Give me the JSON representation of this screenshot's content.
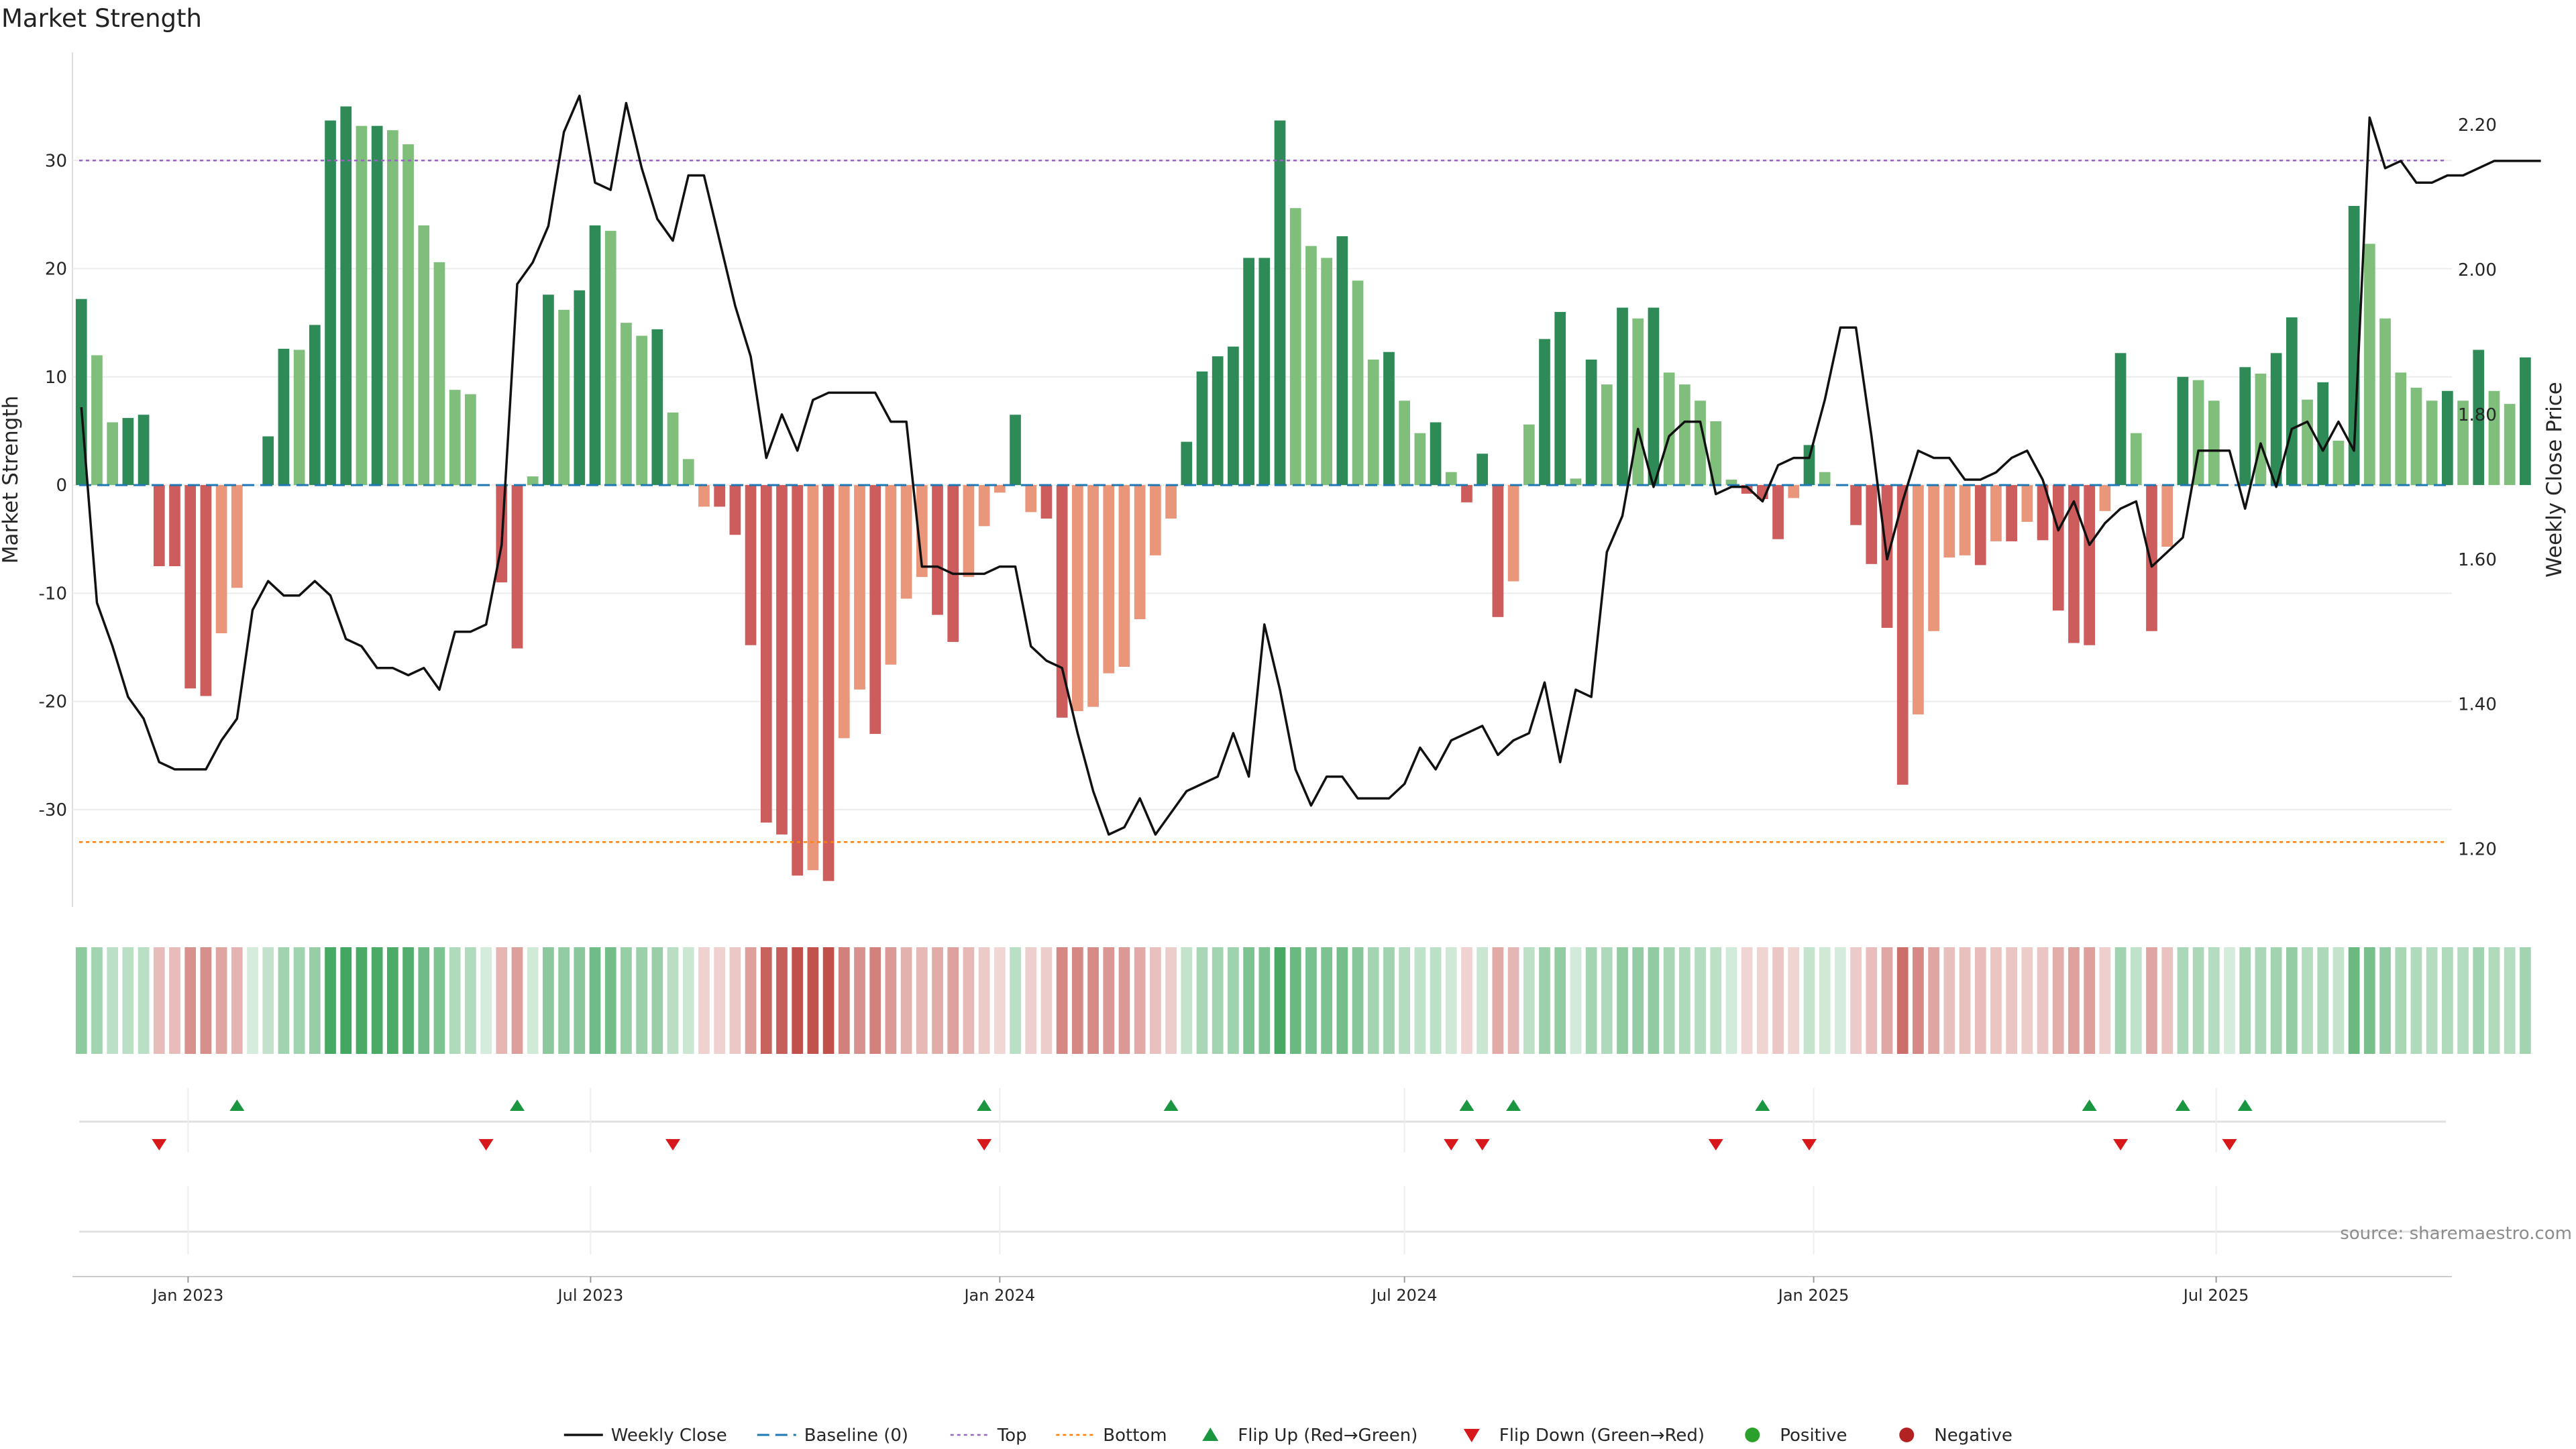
{
  "chart_data": {
    "type": "bar",
    "title": "Market Strength",
    "ylabel_left": "Market Strength",
    "ylabel_right": "Weekly Close Price",
    "y_left": {
      "range": [
        -39,
        40
      ],
      "ticks": [
        -30,
        -20,
        -10,
        0,
        10,
        20,
        30
      ]
    },
    "y_right": {
      "range": [
        1.12,
        2.3
      ],
      "ticks": [
        1.2,
        1.4,
        1.6,
        1.8,
        2.0,
        2.2
      ],
      "tick_labels": [
        "1.20",
        "1.40",
        "1.60",
        "1.80",
        "2.00",
        "2.20"
      ]
    },
    "x_range": [
      "2022-11-10",
      "2025-10-15"
    ],
    "grid": "horizontal",
    "x_ticks": [
      {
        "date": "2023-01-01",
        "label": "Jan 2023"
      },
      {
        "date": "2023-07-01",
        "label": "Jul 2023"
      },
      {
        "date": "2024-01-01",
        "label": "Jan 2024"
      },
      {
        "date": "2024-07-01",
        "label": "Jul 2024"
      },
      {
        "date": "2025-01-01",
        "label": "Jan 2025"
      },
      {
        "date": "2025-07-01",
        "label": "Jul 2025"
      }
    ],
    "first_week": "2022-11-14",
    "week_step_days": 7,
    "top_line": 30,
    "bottom_line": -33,
    "baseline": 0,
    "market_strength": [
      17.2,
      12,
      5.8,
      6.2,
      6.5,
      -7.5,
      -7.5,
      -18.8,
      -19.5,
      -13.7,
      -9.5,
      0,
      4.5,
      12.6,
      12.5,
      14.8,
      33.7,
      35,
      33.2,
      33.2,
      32.8,
      31.5,
      24,
      20.6,
      8.8,
      8.4,
      0,
      -9,
      -15.1,
      0.8,
      17.6,
      16.2,
      18,
      24,
      23.5,
      15,
      13.8,
      14.4,
      6.7,
      2.4,
      -2,
      -2,
      -4.6,
      -14.8,
      -31.2,
      -32.3,
      -36.1,
      -35.6,
      -36.6,
      -23.4,
      -18.9,
      -23,
      -16.6,
      -10.5,
      -8.5,
      -12,
      -14.5,
      -8.5,
      -3.8,
      -0.7,
      6.5,
      -2.5,
      -3.1,
      -21.5,
      -20.9,
      -20.5,
      -17.4,
      -16.8,
      -12.4,
      -6.5,
      -3.1,
      4,
      10.5,
      11.9,
      12.8,
      21,
      21,
      33.7,
      25.6,
      22.1,
      21,
      23,
      18.9,
      11.6,
      12.3,
      7.8,
      4.8,
      5.8,
      1.2,
      -1.6,
      2.9,
      -12.2,
      -8.9,
      5.6,
      13.5,
      16,
      0.6,
      11.6,
      9.3,
      16.4,
      15.4,
      16.4,
      10.4,
      9.3,
      7.8,
      5.9,
      0.5,
      -0.8,
      -1.3,
      -5,
      -1.2,
      3.7,
      1.2,
      0,
      -3.7,
      -7.3,
      -13.2,
      -27.7,
      -21.2,
      -13.5,
      -6.7,
      -6.5,
      -7.4,
      -5.2,
      -5.2,
      -3.4,
      -5.1,
      -11.6,
      -14.6,
      -14.8,
      -2.4,
      12.2,
      4.8,
      -13.5,
      -5.7,
      10,
      9.7,
      7.8,
      0,
      10.9,
      10.3,
      12.2,
      15.5,
      7.9,
      9.5,
      4.1,
      25.8,
      22.3,
      15.4,
      10.4,
      9,
      7.8,
      8.7,
      7.8,
      12.5,
      8.7,
      7.5,
      11.8
    ],
    "weekly_close": [
      1.81,
      1.54,
      1.48,
      1.41,
      1.38,
      1.32,
      1.31,
      1.31,
      1.31,
      1.35,
      1.38,
      1.53,
      1.57,
      1.55,
      1.55,
      1.57,
      1.55,
      1.49,
      1.48,
      1.45,
      1.45,
      1.44,
      1.45,
      1.42,
      1.5,
      1.5,
      1.51,
      1.62,
      1.98,
      2.01,
      2.06,
      2.19,
      2.24,
      2.12,
      2.11,
      2.23,
      2.14,
      2.07,
      2.04,
      2.13,
      2.13,
      2.04,
      1.95,
      1.88,
      1.74,
      1.8,
      1.75,
      1.82,
      1.83,
      1.83,
      1.83,
      1.83,
      1.79,
      1.79,
      1.59,
      1.59,
      1.58,
      1.58,
      1.58,
      1.59,
      1.59,
      1.48,
      1.46,
      1.45,
      1.36,
      1.28,
      1.22,
      1.23,
      1.27,
      1.22,
      1.25,
      1.28,
      1.29,
      1.3,
      1.36,
      1.3,
      1.51,
      1.42,
      1.31,
      1.26,
      1.3,
      1.3,
      1.27,
      1.27,
      1.27,
      1.29,
      1.34,
      1.31,
      1.35,
      1.36,
      1.37,
      1.33,
      1.35,
      1.36,
      1.43,
      1.32,
      1.42,
      1.41,
      1.61,
      1.66,
      1.78,
      1.7,
      1.77,
      1.79,
      1.79,
      1.69,
      1.7,
      1.7,
      1.68,
      1.73,
      1.74,
      1.74,
      1.82,
      1.92,
      1.92,
      1.77,
      1.6,
      1.68,
      1.75,
      1.74,
      1.74,
      1.71,
      1.71,
      1.72,
      1.74,
      1.75,
      1.71,
      1.64,
      1.68,
      1.62,
      1.65,
      1.67,
      1.68,
      1.59,
      1.61,
      1.63,
      1.75,
      1.75,
      1.75,
      1.67,
      1.76,
      1.7,
      1.78,
      1.79,
      1.75,
      1.79,
      1.75,
      2.21,
      2.14,
      2.15,
      2.12,
      2.12,
      2.13,
      2.13,
      2.14,
      2.15,
      2.15,
      2.15,
      2.15
    ],
    "flip_up_dates": [
      "2023-01-23",
      "2023-05-29",
      "2023-12-25",
      "2024-03-18",
      "2024-07-29",
      "2024-08-19",
      "2024-12-09",
      "2025-05-05",
      "2025-06-16",
      "2025-07-14"
    ],
    "flip_down_dates": [
      "2022-12-19",
      "2023-05-15",
      "2023-08-07",
      "2023-12-25",
      "2024-07-22",
      "2024-08-05",
      "2024-11-18",
      "2024-12-30",
      "2025-05-19",
      "2025-07-07"
    ],
    "colors": {
      "positive_strong": "#2e8b57",
      "positive_weak": "#7fbf7b",
      "negative_strong": "#cd5c5c",
      "negative_weak": "#e9967a",
      "close_line": "#111111",
      "baseline": "#1f77b4",
      "top": "#9467bd",
      "bottom": "#ff7f0e",
      "flip_up": "#1a9641",
      "flip_down": "#d7191c",
      "positive_dot": "#2ca02c",
      "negative_dot": "#b22222"
    },
    "legend": {
      "position": "bottom-center",
      "items": [
        {
          "label": "Weekly Close",
          "kind": "line-solid",
          "color": "#111111"
        },
        {
          "label": "Baseline (0)",
          "kind": "line-dash",
          "color": "#1f77b4"
        },
        {
          "label": "Top",
          "kind": "line-dot",
          "color": "#9467bd"
        },
        {
          "label": "Bottom",
          "kind": "line-dot",
          "color": "#ff7f0e"
        },
        {
          "label": "Flip Up (Red→Green)",
          "kind": "triangle-up",
          "color": "#1a9641"
        },
        {
          "label": "Flip Down (Green→Red)",
          "kind": "triangle-down",
          "color": "#d7191c"
        },
        {
          "label": "Positive",
          "kind": "dot",
          "color": "#2ca02c"
        },
        {
          "label": "Negative",
          "kind": "dot",
          "color": "#b22222"
        }
      ]
    },
    "source": "source: sharemaestro.com"
  }
}
